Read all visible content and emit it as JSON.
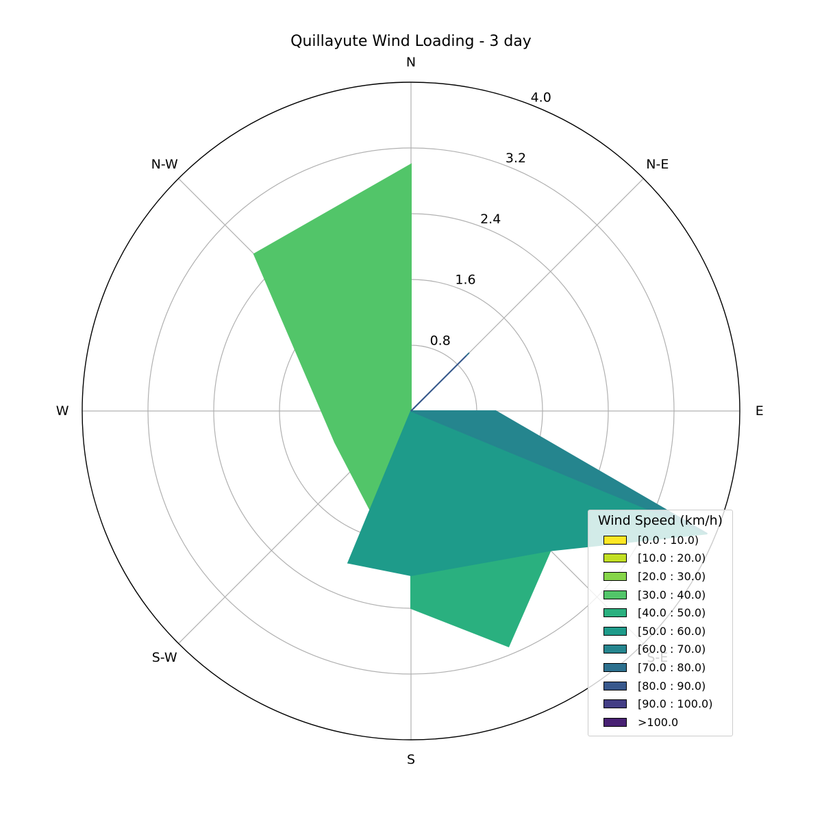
{
  "chart_data": {
    "type": "windrose",
    "title": "Quillayute Wind Loading - 3 day",
    "radial_ticks": [
      "0.8",
      "1.6",
      "2.4",
      "3.2",
      "4.0"
    ],
    "radial_tick_values": [
      0.8,
      1.6,
      2.4,
      3.2,
      4.0
    ],
    "rmax": 4.0,
    "direction_labels": [
      {
        "label": "N",
        "deg": 0
      },
      {
        "label": "N-E",
        "deg": 45
      },
      {
        "label": "E",
        "deg": 90
      },
      {
        "label": "S-E",
        "deg": 135
      },
      {
        "label": "S",
        "deg": 180
      },
      {
        "label": "S-W",
        "deg": 225
      },
      {
        "label": "W",
        "deg": 270
      },
      {
        "label": "N-W",
        "deg": 315
      }
    ],
    "legend_title": "Wind Speed (km/h)",
    "legend_placement": "lower-right",
    "speed_bins": [
      {
        "label": "[0.0 : 10.0)",
        "color": "#fde725"
      },
      {
        "label": "[10.0 : 20.0)",
        "color": "#c2df23"
      },
      {
        "label": "[20.0 : 30.0)",
        "color": "#86d549"
      },
      {
        "label": "[30.0 : 40.0)",
        "color": "#52c569"
      },
      {
        "label": "[40.0 : 50.0)",
        "color": "#2ab07f"
      },
      {
        "label": "[50.0 : 60.0)",
        "color": "#1e9b8a"
      },
      {
        "label": "[60.0 : 70.0)",
        "color": "#25858e"
      },
      {
        "label": "[70.0 : 80.0)",
        "color": "#2d708e"
      },
      {
        "label": "[80.0 : 90.0)",
        "color": "#38588c"
      },
      {
        "label": "[90.0 : 100.0)",
        "color": "#433e85"
      },
      {
        "label": ">100.0",
        "color": "#482173"
      }
    ],
    "series": [
      {
        "bin": "[20.0 : 30.0)",
        "color": "#86d549",
        "points": [
          [
            0,
            0
          ],
          [
            157.5,
            2.0
          ]
        ]
      },
      {
        "bin": "[30.0 : 40.0)",
        "color": "#52c569",
        "points": [
          [
            0,
            3.0
          ],
          [
            315,
            2.7
          ],
          [
            247.5,
            1.0
          ],
          [
            202.5,
            1.3
          ],
          [
            180,
            2.0
          ],
          [
            157.5,
            2.0
          ]
        ]
      },
      {
        "bin": "[40.0 : 50.0)",
        "color": "#2ab07f",
        "points": [
          [
            112.5,
            2.0
          ],
          [
            135,
            2.4
          ],
          [
            157.5,
            3.1
          ],
          [
            180,
            2.4
          ]
        ]
      },
      {
        "bin": "[50.0 : 60.0)",
        "color": "#1e9b8a",
        "points": [
          [
            112.5,
            3.9
          ],
          [
            135,
            2.4
          ],
          [
            180,
            2.0
          ],
          [
            202.5,
            2.0
          ],
          [
            225,
            0.0
          ]
        ]
      },
      {
        "bin": "[60.0 : 70.0)",
        "color": "#25858e",
        "points": [
          [
            90,
            1.03
          ],
          [
            112.5,
            3.9
          ],
          [
            135,
            0.0
          ]
        ]
      },
      {
        "bin": "[70.0 : 80.0)",
        "color": "#2d708e",
        "points": [
          [
            45,
            1.0
          ],
          [
            90,
            0.0
          ]
        ]
      },
      {
        "bin": "[80.0 : 90.0)",
        "color": "#38588c",
        "points": [
          [
            45,
            0.95
          ],
          [
            90,
            0.0
          ]
        ]
      }
    ]
  }
}
